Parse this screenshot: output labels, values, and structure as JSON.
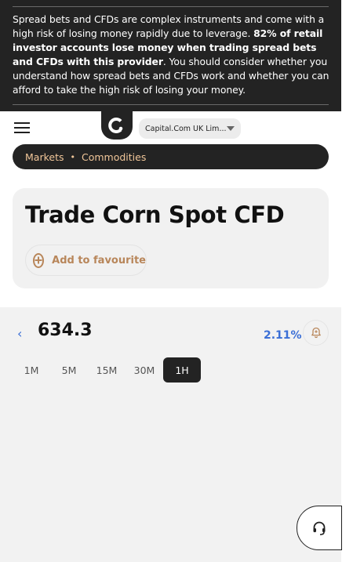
{
  "risk_warning": {
    "text_start": "Spread bets and CFDs are complex instruments and come with a high risk of losing money rapidly due to leverage. ",
    "text_bold": "82% of retail investor accounts lose money when trading spread bets and CFDs with this provider",
    "text_end": ". You should consider whether you understand how spread bets and CFDs work and whether you can afford to take the high risk of losing your money."
  },
  "header": {
    "menu_icon": "hamburger-menu-icon",
    "logo_icon": "capital-com-logo",
    "entity_selector": "Capital.Com UK Lim..."
  },
  "breadcrumb": {
    "items": [
      "Markets",
      "Commodities"
    ],
    "separator": "•"
  },
  "title_card": {
    "title": "Trade Corn Spot CFD",
    "favourite_label": "Add to favourite"
  },
  "instrument": {
    "price": "634.3",
    "change": "2.11%",
    "back_icon": "chevron-left-icon",
    "alert_icon": "bell-plus-icon"
  },
  "timeframes": {
    "items": [
      "1M",
      "5M",
      "15M",
      "30M",
      "1H"
    ],
    "selected": "1H"
  },
  "support": {
    "icon": "headset-icon"
  },
  "colors": {
    "banner_bg": "#232323",
    "accent_gold": "#b8865a",
    "breadcrumb_text": "#f2c79a",
    "price_change_blue": "#3b6fd6",
    "panel_bg": "#f2f2f2"
  }
}
